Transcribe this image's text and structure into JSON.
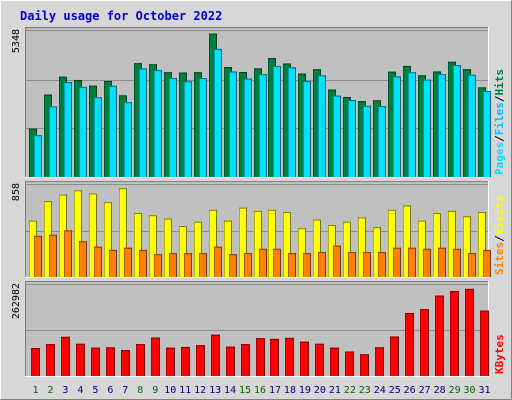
{
  "chart_data": {
    "type": "bar",
    "title": "Daily usage for October 2022",
    "categories": [
      "1",
      "2",
      "3",
      "4",
      "5",
      "6",
      "7",
      "8",
      "9",
      "10",
      "11",
      "12",
      "13",
      "14",
      "15",
      "16",
      "17",
      "18",
      "19",
      "20",
      "21",
      "22",
      "23",
      "24",
      "25",
      "26",
      "27",
      "28",
      "29",
      "30",
      "31"
    ],
    "weekend_days": [
      "1",
      "2",
      "8",
      "9",
      "15",
      "16",
      "22",
      "23",
      "29",
      "30"
    ],
    "colors": {
      "hits": "#008040",
      "files": "#00E0FF",
      "visits": "#FFFF00",
      "sites": "#FF8000",
      "kbytes": "#FF0000",
      "title": "#0000CC",
      "weekday_label": "#000080",
      "weekend_label": "#006600",
      "panel_bg": "#C0C0C0",
      "frame_bg": "#D7D7D7"
    },
    "panels": [
      {
        "name": "hits-files-pages",
        "ymax_label": "5348",
        "ylim": [
          0,
          5348
        ],
        "legend": [
          "Pages",
          "/",
          "Files",
          "/",
          "Hits"
        ],
        "legend_colors": [
          "#00E0FF",
          "#000000",
          "#00C0FF",
          "#000000",
          "#008040"
        ],
        "series": [
          {
            "name": "Hits",
            "values": [
              1760,
              3000,
              3650,
              3530,
              3320,
              3490,
              2970,
              4140,
              4100,
              3810,
              3800,
              3810,
              5220,
              4000,
              3820,
              3950,
              4330,
              4130,
              3760,
              3920,
              3180,
              2910,
              2760,
              2790,
              3830,
              4040,
              3700,
              3840,
              4190,
              3920,
              3260
            ]
          },
          {
            "name": "Files",
            "values": [
              1520,
              2570,
              3450,
              3280,
              2900,
              3320,
              2720,
              3950,
              3890,
              3600,
              3480,
              3600,
              4660,
              3840,
              3580,
              3740,
              4040,
              3990,
              3490,
              3700,
              2960,
              2800,
              2590,
              2580,
              3660,
              3810,
              3540,
              3740,
              4070,
              3720,
              3130
            ]
          }
        ]
      },
      {
        "name": "visits-sites",
        "ymax_label": "858",
        "ylim": [
          0,
          858
        ],
        "legend": [
          "Sites",
          "/",
          "Visits"
        ],
        "legend_colors": [
          "#FF8000",
          "#000000",
          "#FFFF00"
        ],
        "series": [
          {
            "name": "Visits",
            "values": [
              520,
              700,
              760,
              800,
              770,
              690,
              820,
              590,
              570,
              540,
              470,
              510,
              620,
              520,
              640,
              610,
              620,
              600,
              450,
              530,
              480,
              510,
              550,
              460,
              620,
              660,
              520,
              590,
              610,
              560,
              600
            ]
          },
          {
            "name": "Sites",
            "values": [
              380,
              390,
              430,
              330,
              280,
              250,
              270,
              250,
              210,
              220,
              220,
              220,
              280,
              210,
              220,
              260,
              260,
              220,
              220,
              230,
              290,
              230,
              230,
              230,
              270,
              270,
              260,
              270,
              260,
              220,
              250
            ]
          }
        ]
      },
      {
        "name": "kbytes",
        "ymax_label": "262982",
        "ylim": [
          0,
          262982
        ],
        "legend": [
          "KBytes"
        ],
        "legend_colors": [
          "#FF0000"
        ],
        "series": [
          {
            "name": "KBytes",
            "values": [
              80000,
              91000,
              112000,
              92000,
              81000,
              82000,
              74000,
              91000,
              110000,
              81000,
              83000,
              88000,
              118000,
              84000,
              91000,
              108000,
              106000,
              109000,
              98000,
              92000,
              81000,
              70000,
              62000,
              82000,
              113000,
              180000,
              191000,
              230000,
              243000,
              249000,
              187000
            ]
          }
        ]
      }
    ]
  }
}
